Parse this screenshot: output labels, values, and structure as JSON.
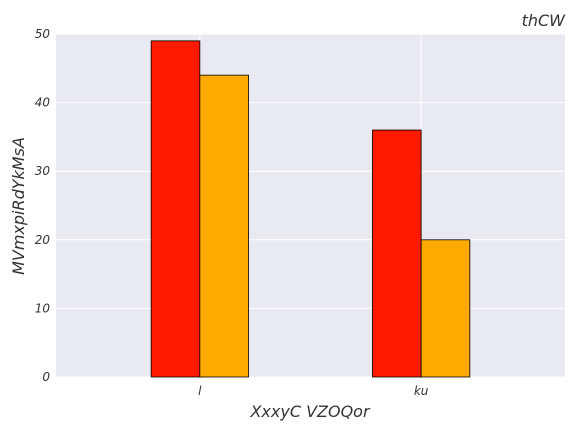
{
  "chart_data": {
    "type": "bar",
    "title": "thCW",
    "xlabel": "XxxyC VZOQor",
    "ylabel": "MVmxpiRdYkMsA",
    "categories": [
      "l",
      "ku"
    ],
    "series": [
      {
        "values": [
          49,
          36
        ],
        "color": "#ff1a00"
      },
      {
        "values": [
          44,
          20
        ],
        "color": "#ffaa00"
      }
    ],
    "ylim": [
      0,
      50
    ],
    "yticks": [
      0,
      10,
      20,
      30,
      40,
      50
    ],
    "grid": true,
    "background": "#e9e9f2"
  }
}
